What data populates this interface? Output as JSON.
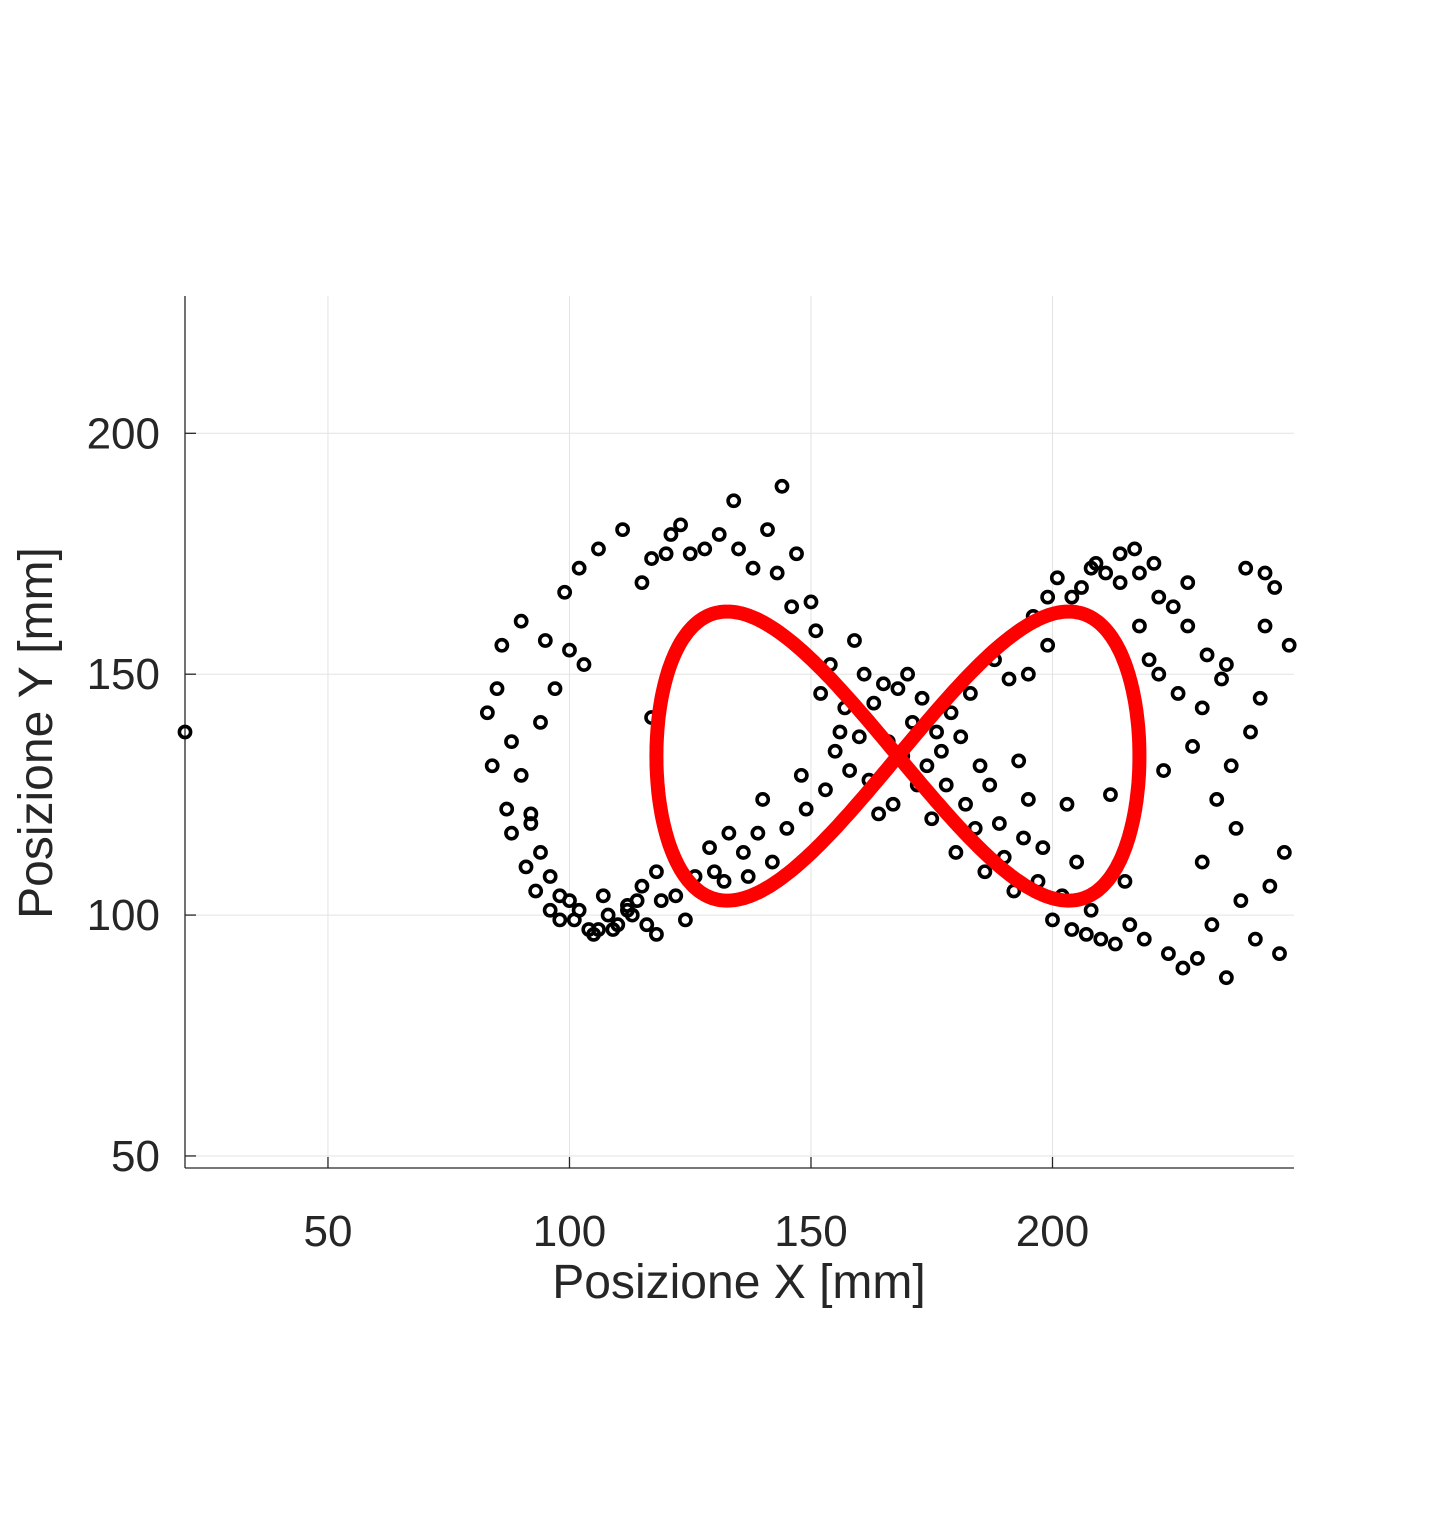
{
  "chart_data": {
    "type": "scatter",
    "title": "",
    "xlabel": "Posizione X [mm]",
    "ylabel": "Posizione Y [mm]",
    "xlim": [
      20.4,
      250
    ],
    "ylim": [
      47.5,
      228.5
    ],
    "xticks": [
      50,
      100,
      150,
      200
    ],
    "yticks": [
      50,
      100,
      150,
      200
    ],
    "xtick_labels": [
      "50",
      "100",
      "150",
      "200"
    ],
    "ytick_labels": [
      "50",
      "100",
      "150",
      "200"
    ],
    "grid": true,
    "legend": "none",
    "series": [
      {
        "marker": "circle-open",
        "color": "#000000",
        "points": [
          [
            20.4,
            138
          ],
          [
            83,
            142
          ],
          [
            84,
            131
          ],
          [
            85,
            147
          ],
          [
            86,
            156
          ],
          [
            87,
            122
          ],
          [
            88,
            136
          ],
          [
            88,
            117
          ],
          [
            90,
            161
          ],
          [
            90,
            129
          ],
          [
            91,
            110
          ],
          [
            92,
            119
          ],
          [
            93,
            105
          ],
          [
            94,
            140
          ],
          [
            95,
            157
          ],
          [
            96,
            101
          ],
          [
            97,
            147
          ],
          [
            98,
            99
          ],
          [
            99,
            167
          ],
          [
            100,
            155
          ],
          [
            100,
            103
          ],
          [
            101,
            99
          ],
          [
            102,
            172
          ],
          [
            103,
            152
          ],
          [
            104,
            97
          ],
          [
            105,
            96
          ],
          [
            106,
            176
          ],
          [
            107,
            104
          ],
          [
            108,
            100
          ],
          [
            110,
            98
          ],
          [
            111,
            180
          ],
          [
            112,
            101
          ],
          [
            113,
            100
          ],
          [
            114,
            103
          ],
          [
            115,
            169
          ],
          [
            116,
            98
          ],
          [
            117,
            174
          ],
          [
            117,
            141
          ],
          [
            118,
            96
          ],
          [
            119,
            103
          ],
          [
            120,
            175
          ],
          [
            121,
            179
          ],
          [
            122,
            104
          ],
          [
            123,
            181
          ],
          [
            124,
            99
          ],
          [
            125,
            175
          ],
          [
            126,
            108
          ],
          [
            128,
            176
          ],
          [
            129,
            114
          ],
          [
            130,
            109
          ],
          [
            131,
            179
          ],
          [
            132,
            107
          ],
          [
            133,
            117
          ],
          [
            134,
            186
          ],
          [
            135,
            176
          ],
          [
            136,
            113
          ],
          [
            137,
            108
          ],
          [
            138,
            172
          ],
          [
            139,
            117
          ],
          [
            140,
            124
          ],
          [
            141,
            180
          ],
          [
            142,
            111
          ],
          [
            143,
            171
          ],
          [
            144,
            189
          ],
          [
            145,
            118
          ],
          [
            146,
            164
          ],
          [
            147,
            175
          ],
          [
            148,
            129
          ],
          [
            149,
            122
          ],
          [
            150,
            165
          ],
          [
            151,
            159
          ],
          [
            152,
            146
          ],
          [
            153,
            126
          ],
          [
            154,
            152
          ],
          [
            155,
            134
          ],
          [
            156,
            138
          ],
          [
            157,
            143
          ],
          [
            158,
            130
          ],
          [
            159,
            157
          ],
          [
            160,
            137
          ],
          [
            161,
            150
          ],
          [
            162,
            128
          ],
          [
            163,
            144
          ],
          [
            164,
            121
          ],
          [
            165,
            148
          ],
          [
            166,
            136
          ],
          [
            167,
            123
          ],
          [
            168,
            147
          ],
          [
            169,
            133
          ],
          [
            170,
            150
          ],
          [
            171,
            140
          ],
          [
            172,
            127
          ],
          [
            173,
            145
          ],
          [
            174,
            131
          ],
          [
            175,
            120
          ],
          [
            176,
            138
          ],
          [
            177,
            134
          ],
          [
            178,
            127
          ],
          [
            179,
            142
          ],
          [
            180,
            113
          ],
          [
            181,
            137
          ],
          [
            182,
            123
          ],
          [
            183,
            146
          ],
          [
            184,
            118
          ],
          [
            185,
            131
          ],
          [
            186,
            109
          ],
          [
            187,
            127
          ],
          [
            188,
            153
          ],
          [
            189,
            119
          ],
          [
            190,
            112
          ],
          [
            191,
            149
          ],
          [
            192,
            105
          ],
          [
            193,
            132
          ],
          [
            194,
            116
          ],
          [
            195,
            124
          ],
          [
            196,
            162
          ],
          [
            197,
            107
          ],
          [
            198,
            114
          ],
          [
            199,
            166
          ],
          [
            200,
            99
          ],
          [
            201,
            170
          ],
          [
            202,
            104
          ],
          [
            203,
            123
          ],
          [
            204,
            97
          ],
          [
            205,
            111
          ],
          [
            206,
            168
          ],
          [
            207,
            96
          ],
          [
            208,
            101
          ],
          [
            209,
            173
          ],
          [
            210,
            95
          ],
          [
            211,
            171
          ],
          [
            212,
            125
          ],
          [
            213,
            94
          ],
          [
            214,
            169
          ],
          [
            215,
            107
          ],
          [
            216,
            98
          ],
          [
            217,
            176
          ],
          [
            218,
            160
          ],
          [
            219,
            95
          ],
          [
            220,
            153
          ],
          [
            221,
            173
          ],
          [
            222,
            150
          ],
          [
            223,
            130
          ],
          [
            224,
            92
          ],
          [
            225,
            164
          ],
          [
            226,
            146
          ],
          [
            227,
            89
          ],
          [
            228,
            169
          ],
          [
            229,
            135
          ],
          [
            230,
            91
          ],
          [
            231,
            111
          ],
          [
            232,
            154
          ],
          [
            233,
            98
          ],
          [
            234,
            124
          ],
          [
            235,
            149
          ],
          [
            236,
            87
          ],
          [
            237,
            131
          ],
          [
            238,
            118
          ],
          [
            239,
            103
          ],
          [
            240,
            172
          ],
          [
            241,
            138
          ],
          [
            242,
            95
          ],
          [
            243,
            145
          ],
          [
            244,
            160
          ],
          [
            245,
            106
          ],
          [
            246,
            168
          ],
          [
            247,
            92
          ],
          [
            248,
            113
          ],
          [
            249,
            156
          ],
          [
            244,
            171
          ],
          [
            236,
            152
          ],
          [
            231,
            143
          ],
          [
            228,
            160
          ],
          [
            222,
            166
          ],
          [
            218,
            171
          ],
          [
            214,
            175
          ],
          [
            208,
            172
          ],
          [
            204,
            166
          ],
          [
            199,
            156
          ],
          [
            195,
            150
          ],
          [
            92,
            121
          ],
          [
            94,
            113
          ],
          [
            96,
            108
          ],
          [
            98,
            104
          ],
          [
            102,
            101
          ],
          [
            106,
            97
          ],
          [
            109,
            97
          ],
          [
            112,
            102
          ],
          [
            115,
            106
          ],
          [
            118,
            109
          ]
        ]
      },
      {
        "marker": "curve",
        "color": "#ff0000",
        "equation": "lemniscate",
        "center": [
          168,
          133
        ],
        "x_amplitude": 50,
        "y_amplitude": 30
      }
    ]
  }
}
